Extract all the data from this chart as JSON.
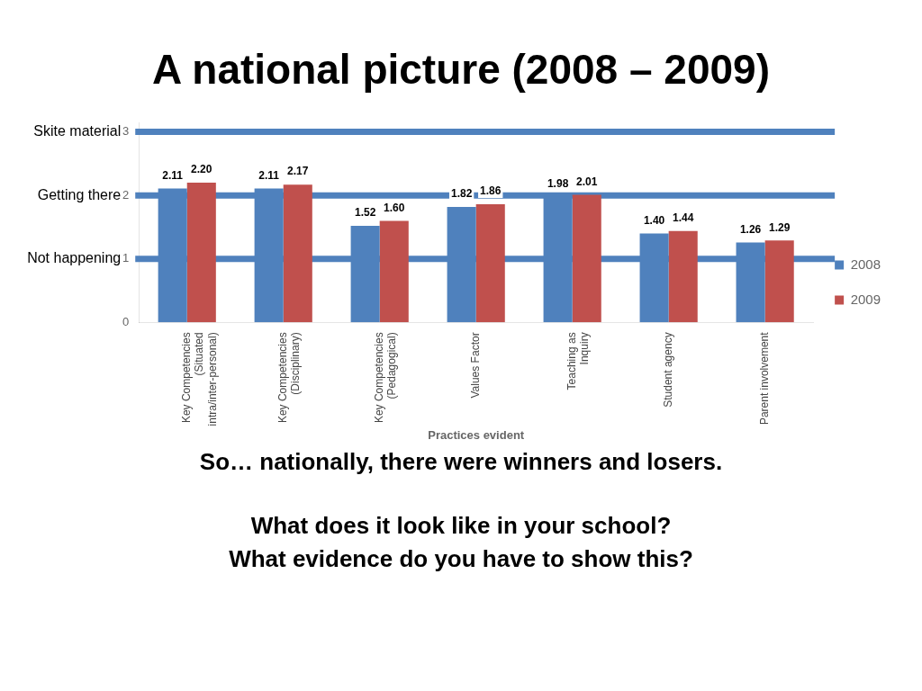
{
  "chart_data": {
    "type": "bar",
    "title": "A national picture (2008 – 2009)",
    "xlabel": "Practices evident",
    "categories": [
      "Key Competencies (Situated intra/inter-personal)",
      "Key Competencies (Disciplinary)",
      "Key Competencies (Pedagogical)",
      "Values Factor",
      "Teaching as Inquiry",
      "Student agency",
      "Parent involvement"
    ],
    "series": [
      {
        "name": "2008",
        "color": "#4f81bd",
        "values": [
          2.11,
          2.11,
          1.52,
          1.82,
          1.98,
          1.4,
          1.26
        ],
        "value_labels": [
          "2.11",
          "2.11",
          "1.52",
          "1.82",
          "1.98",
          "1.40",
          "1.26"
        ]
      },
      {
        "name": "2009",
        "color": "#c0504d",
        "values": [
          2.2,
          2.17,
          1.6,
          1.86,
          2.01,
          1.44,
          1.29
        ],
        "value_labels": [
          "2.20",
          "2.17",
          "1.60",
          "1.86",
          "2.01",
          "1.44",
          "1.29"
        ]
      }
    ],
    "ylim": [
      0,
      3.15
    ],
    "yticks": [
      0,
      1,
      2,
      3
    ],
    "legend": "right",
    "grid": false,
    "ref_lines": [
      {
        "axis": "y",
        "value": 3,
        "label": "Skite material",
        "color": "#4f81bd"
      },
      {
        "axis": "y",
        "value": 2,
        "label": "Getting there",
        "color": "#4f81bd"
      },
      {
        "axis": "y",
        "value": 1,
        "label": "Not happening",
        "color": "#4f81bd"
      }
    ],
    "annotations": [
      "So… nationally, there were winners and losers.",
      "What does it look like in your school?",
      "What evidence do you have to show this?"
    ]
  }
}
